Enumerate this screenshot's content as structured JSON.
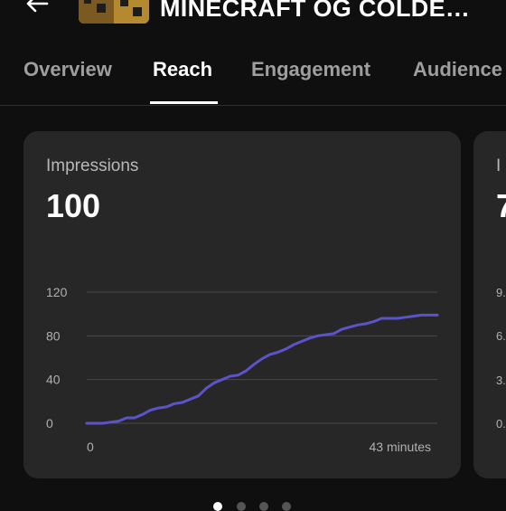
{
  "header": {
    "video_title": "MINECRAFT OG COLDE…"
  },
  "tabs": [
    {
      "label": "Overview",
      "active": false
    },
    {
      "label": "Reach",
      "active": true
    },
    {
      "label": "Engagement",
      "active": false
    },
    {
      "label": "Audience",
      "active": false
    }
  ],
  "impressions_card": {
    "label": "Impressions",
    "value": "100"
  },
  "next_card": {
    "label": "I",
    "value": "7",
    "ticks": [
      "9.",
      "6.",
      "3.",
      "0."
    ]
  },
  "chart_data": {
    "type": "line",
    "series": [
      {
        "values": [
          0,
          0,
          0,
          1,
          2,
          5,
          5,
          8,
          12,
          14,
          15,
          18,
          19,
          22,
          25,
          32,
          37,
          40,
          43,
          44,
          48,
          54,
          59,
          63,
          65,
          68,
          72,
          75,
          78,
          80,
          81,
          82,
          86,
          88,
          90,
          91,
          93,
          96,
          96,
          96,
          97,
          98,
          99,
          99,
          99
        ]
      }
    ],
    "x": [
      0,
      1,
      2,
      3,
      4,
      5,
      6,
      7,
      8,
      9,
      10,
      11,
      12,
      13,
      14,
      15,
      16,
      17,
      18,
      19,
      20,
      21,
      22,
      23,
      24,
      25,
      26,
      27,
      28,
      29,
      30,
      31,
      32,
      33,
      34,
      35,
      36,
      37,
      38,
      39,
      40,
      41,
      42,
      43,
      44
    ],
    "x_tick_labels": [
      "0",
      "43 minutes"
    ],
    "y_ticks": [
      0,
      40,
      80,
      120
    ],
    "ylim": [
      0,
      120
    ],
    "xlim": [
      0,
      44
    ],
    "grid": true,
    "line_color": "#5b54c8"
  },
  "pager": {
    "count": 4,
    "active_index": 0
  }
}
